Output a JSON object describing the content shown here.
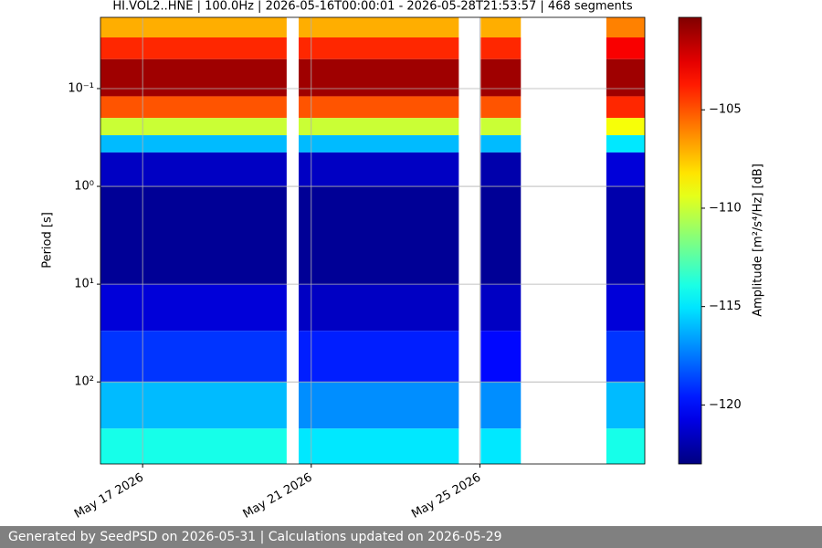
{
  "chart_data": {
    "type": "heatmap",
    "title": "HI.VOL2..HNE | 100.0Hz | 2026-05-16T00:00:01 - 2026-05-28T21:53:57 | 468 segments",
    "ylabel": "Period [s]",
    "colorbar_label": "Amplitude [m²/s⁴/Hz] [dB]",
    "xlim": [
      "2026-05-16T00:00:01",
      "2026-05-28T21:53:57"
    ],
    "xticks": [
      {
        "value": "2026-05-17",
        "label": "May 17 2026"
      },
      {
        "value": "2026-05-21",
        "label": "May 21 2026"
      },
      {
        "value": "2026-05-25",
        "label": "May 25 2026"
      }
    ],
    "ylim": [
      0.0187,
      690
    ],
    "y_log": true,
    "y_inverted": true,
    "yticks": [
      {
        "value": 0.1,
        "label": "10⁻¹"
      },
      {
        "value": 1,
        "label": "10⁰"
      },
      {
        "value": 10,
        "label": "10¹"
      },
      {
        "value": 100,
        "label": "10²"
      }
    ],
    "grid": true,
    "colormap": "jet",
    "clim": [
      -123,
      -100.3
    ],
    "cticks": [
      {
        "value": -105,
        "label": "−105"
      },
      {
        "value": -110,
        "label": "−110"
      },
      {
        "value": -115,
        "label": "−115"
      },
      {
        "value": -120,
        "label": "−120"
      }
    ],
    "period_edges": [
      0.0187,
      0.03,
      0.05,
      0.12,
      0.2,
      0.3,
      0.45,
      1,
      10,
      30,
      100,
      300,
      690
    ],
    "segments": [
      {
        "start": "2026-05-16T00:00:01",
        "end": "2026-05-20T10:00:00",
        "values": [
          -107,
          -104,
          -101,
          -105,
          -110,
          -116,
          -121.5,
          -122.5,
          -121,
          -119,
          -116,
          -114
        ]
      },
      {
        "start": "2026-05-20T16:50:00",
        "end": "2026-05-24T12:00:00",
        "values": [
          -107,
          -104,
          -101,
          -105,
          -110,
          -116,
          -121.5,
          -122.5,
          -121.5,
          -119.5,
          -117,
          -115
        ]
      },
      {
        "start": "2026-05-25T00:30:00",
        "end": "2026-05-25T23:20:00",
        "values": [
          -107,
          -104,
          -101,
          -105,
          -110,
          -116,
          -122,
          -122.5,
          -121.5,
          -120,
          -117,
          -115
        ]
      },
      {
        "start": "2026-05-28T00:00:00",
        "end": "2026-05-28T21:53:57",
        "values": [
          -106,
          -103,
          -101,
          -104,
          -109,
          -115,
          -121,
          -122,
          -121,
          -119,
          -116,
          -114
        ]
      }
    ]
  },
  "footer": "Generated by SeedPSD on 2026-05-31 | Calculations updated on 2026-05-29"
}
